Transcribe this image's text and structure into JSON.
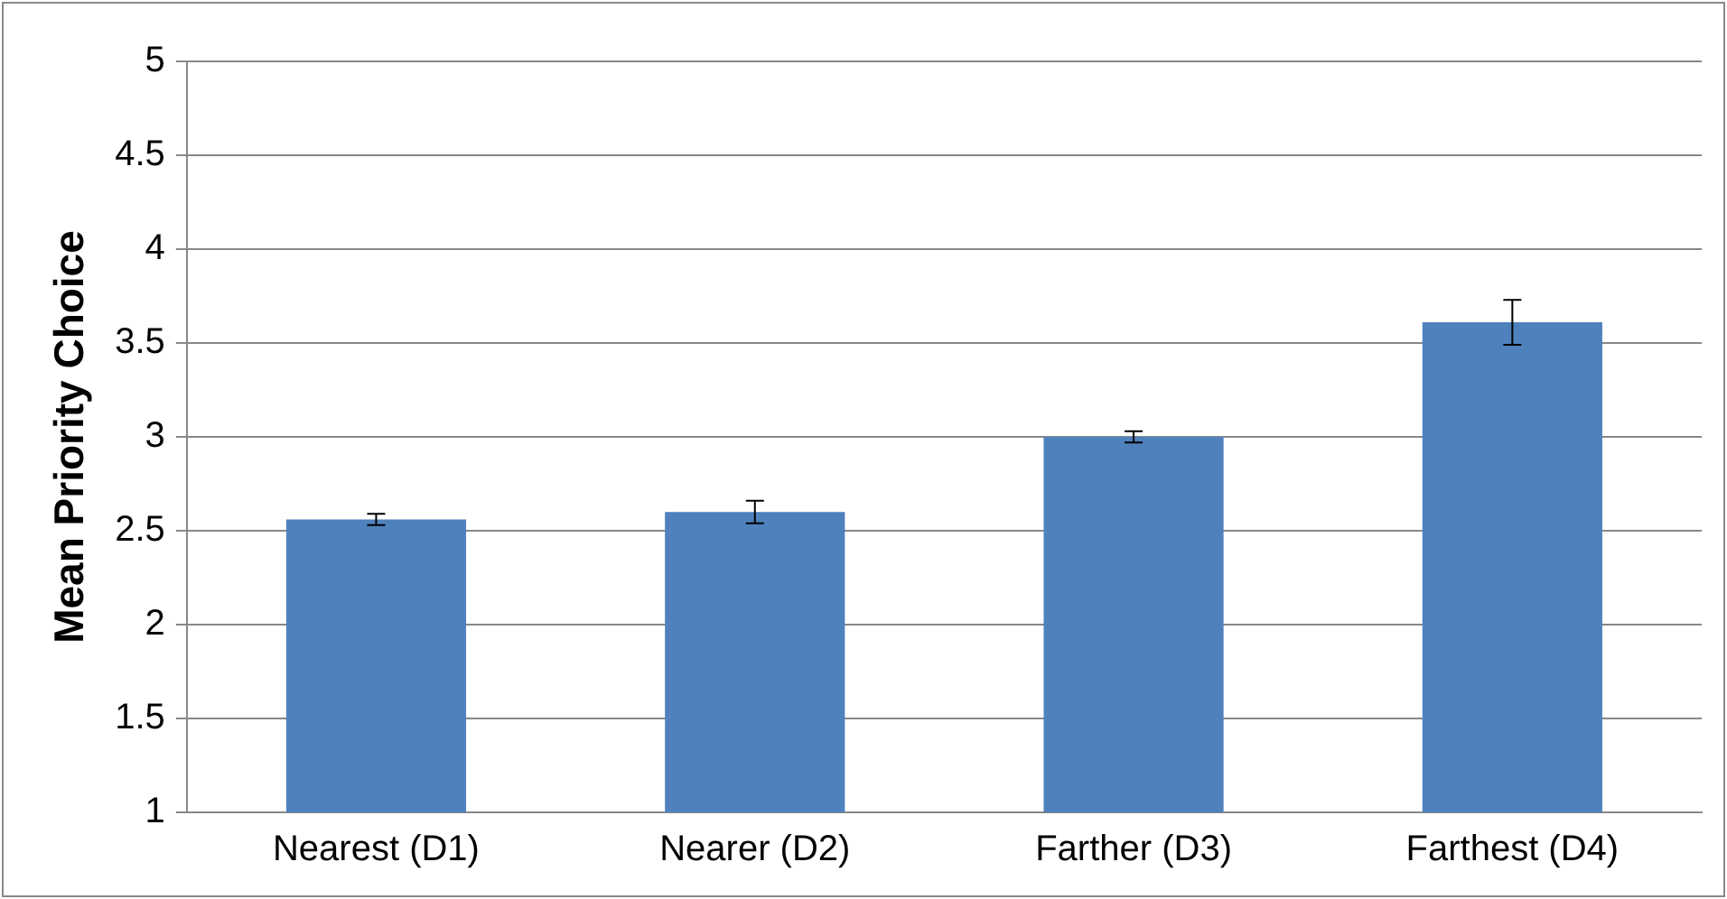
{
  "chart_data": {
    "type": "bar",
    "ylabel": "Mean Priority Choice",
    "categories": [
      "Nearest (D1)",
      "Nearer (D2)",
      "Farther (D3)",
      "Farthest (D4)"
    ],
    "values": [
      2.56,
      2.6,
      3.0,
      3.61
    ],
    "errors": [
      0.03,
      0.06,
      0.03,
      0.12
    ],
    "color": "#4f81bd",
    "ylim": [
      1,
      5
    ],
    "yticks": [
      1,
      1.5,
      2,
      2.5,
      3,
      3.5,
      4,
      4.5,
      5
    ],
    "grid": "y",
    "legend": false
  }
}
